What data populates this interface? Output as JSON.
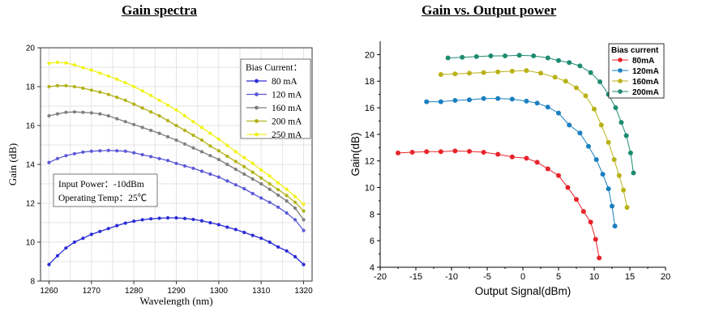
{
  "chart_data": [
    {
      "type": "line",
      "title": "Gain spectra",
      "xlabel": "Wavelength (nm)",
      "ylabel": "Gain (dB)",
      "xlim": [
        1258,
        1322
      ],
      "ylim": [
        8,
        20
      ],
      "xticks": [
        1260,
        1270,
        1280,
        1290,
        1300,
        1310,
        1320
      ],
      "yticks": [
        8,
        10,
        12,
        14,
        16,
        18,
        20
      ],
      "legend_title": "Bias Current：",
      "legend_position": "top-right",
      "grid": true,
      "annotations": [
        "Input Power：-10dBm",
        "Operating Temp：25℃"
      ],
      "x": [
        1260,
        1262,
        1264,
        1266,
        1268,
        1270,
        1272,
        1274,
        1276,
        1278,
        1280,
        1282,
        1284,
        1286,
        1288,
        1290,
        1292,
        1294,
        1296,
        1298,
        1300,
        1302,
        1304,
        1306,
        1308,
        1310,
        1312,
        1314,
        1316,
        1318,
        1320
      ],
      "series": [
        {
          "name": "80 mA",
          "color": "#2b2bd6",
          "values": [
            8.85,
            9.3,
            9.7,
            10.0,
            10.2,
            10.4,
            10.55,
            10.7,
            10.85,
            10.98,
            11.08,
            11.15,
            11.2,
            11.23,
            11.25,
            11.25,
            11.22,
            11.17,
            11.1,
            11.0,
            10.9,
            10.77,
            10.65,
            10.5,
            10.35,
            10.2,
            10.0,
            9.75,
            9.55,
            9.25,
            8.85
          ]
        },
        {
          "name": "120 mA",
          "color": "#5a5ad8",
          "values": [
            14.1,
            14.3,
            14.45,
            14.55,
            14.63,
            14.68,
            14.7,
            14.72,
            14.7,
            14.68,
            14.6,
            14.5,
            14.4,
            14.3,
            14.2,
            14.05,
            13.92,
            13.8,
            13.65,
            13.5,
            13.35,
            13.15,
            12.95,
            12.75,
            12.5,
            12.27,
            12.05,
            11.8,
            11.5,
            11.15,
            10.6
          ]
        },
        {
          "name": "160 mA",
          "color": "#7f7f7f",
          "values": [
            16.5,
            16.6,
            16.68,
            16.7,
            16.68,
            16.65,
            16.6,
            16.5,
            16.35,
            16.2,
            16.05,
            15.9,
            15.75,
            15.6,
            15.42,
            15.25,
            15.05,
            14.85,
            14.65,
            14.45,
            14.25,
            14.0,
            13.75,
            13.5,
            13.25,
            13.0,
            12.72,
            12.42,
            12.12,
            11.75,
            11.15
          ]
        },
        {
          "name": "200 mA",
          "color": "#b2b218",
          "values": [
            18.0,
            18.05,
            18.05,
            18.0,
            17.92,
            17.82,
            17.72,
            17.6,
            17.45,
            17.3,
            17.1,
            16.9,
            16.7,
            16.5,
            16.25,
            16.0,
            15.75,
            15.5,
            15.25,
            14.95,
            14.7,
            14.42,
            14.15,
            13.88,
            13.6,
            13.3,
            13.0,
            12.7,
            12.4,
            12.05,
            11.6
          ]
        },
        {
          "name": "250 mA",
          "color": "#f2f21a",
          "values": [
            19.2,
            19.25,
            19.22,
            19.12,
            18.98,
            18.85,
            18.7,
            18.55,
            18.38,
            18.2,
            18.0,
            17.78,
            17.55,
            17.3,
            17.05,
            16.8,
            16.5,
            16.2,
            15.9,
            15.6,
            15.3,
            14.98,
            14.65,
            14.35,
            14.05,
            13.72,
            13.4,
            13.05,
            12.72,
            12.35,
            11.95
          ]
        }
      ]
    },
    {
      "type": "line",
      "title": "Gain vs. Output power",
      "xlabel": "Output Signal(dBm)",
      "ylabel": "Gain(dB)",
      "xlim": [
        -20,
        20
      ],
      "ylim": [
        4,
        21
      ],
      "xticks": [
        -20,
        -15,
        -10,
        -5,
        0,
        5,
        10,
        15,
        20
      ],
      "yticks": [
        4,
        6,
        8,
        10,
        12,
        14,
        16,
        18,
        20
      ],
      "legend_title": "Bias current",
      "legend_position": "top-right",
      "grid": false,
      "series": [
        {
          "name": "80mA",
          "color": "#e8232a",
          "x": [
            -17.5,
            -15.5,
            -13.5,
            -11.5,
            -9.5,
            -7.5,
            -5.5,
            -3.5,
            -1.5,
            0.5,
            2.0,
            3.5,
            5.0,
            6.3,
            7.5,
            8.5,
            9.5,
            10.2,
            10.7
          ],
          "y": [
            12.6,
            12.65,
            12.7,
            12.7,
            12.75,
            12.72,
            12.65,
            12.5,
            12.3,
            12.2,
            11.9,
            11.4,
            10.9,
            10.0,
            9.1,
            8.2,
            7.4,
            6.1,
            4.7
          ]
        },
        {
          "name": "120mA",
          "color": "#1a7fc0",
          "x": [
            -13.5,
            -11.5,
            -9.5,
            -7.5,
            -5.5,
            -3.5,
            -1.5,
            0.5,
            2.0,
            3.5,
            5.0,
            6.5,
            8.0,
            9.2,
            10.3,
            11.2,
            12.0,
            12.5,
            12.9
          ],
          "y": [
            16.45,
            16.45,
            16.55,
            16.6,
            16.7,
            16.7,
            16.65,
            16.5,
            16.35,
            16.05,
            15.6,
            14.7,
            14.1,
            13.1,
            12.1,
            11.0,
            9.9,
            8.6,
            7.1
          ]
        },
        {
          "name": "160mA",
          "color": "#b9b217",
          "x": [
            -11.5,
            -9.5,
            -7.5,
            -5.5,
            -3.5,
            -1.5,
            0.5,
            2.5,
            4.5,
            6.0,
            7.5,
            8.8,
            10.0,
            11.0,
            12.0,
            12.8,
            13.5,
            14.1,
            14.6
          ],
          "y": [
            18.5,
            18.55,
            18.6,
            18.65,
            18.7,
            18.75,
            18.8,
            18.6,
            18.3,
            18.0,
            17.5,
            16.9,
            15.9,
            14.7,
            13.4,
            12.1,
            10.9,
            9.8,
            8.5
          ]
        },
        {
          "name": "200mA",
          "color": "#1d8b70",
          "x": [
            -10.5,
            -8.5,
            -6.5,
            -4.5,
            -2.5,
            -0.5,
            1.5,
            3.5,
            5.0,
            6.5,
            8.0,
            9.5,
            10.8,
            12.0,
            13.0,
            13.8,
            14.5,
            15.1,
            15.5
          ],
          "y": [
            19.75,
            19.8,
            19.85,
            19.9,
            19.9,
            19.95,
            19.9,
            19.75,
            19.55,
            19.4,
            19.15,
            18.65,
            17.95,
            17.0,
            16.0,
            14.9,
            13.9,
            12.6,
            11.1
          ]
        }
      ]
    }
  ]
}
